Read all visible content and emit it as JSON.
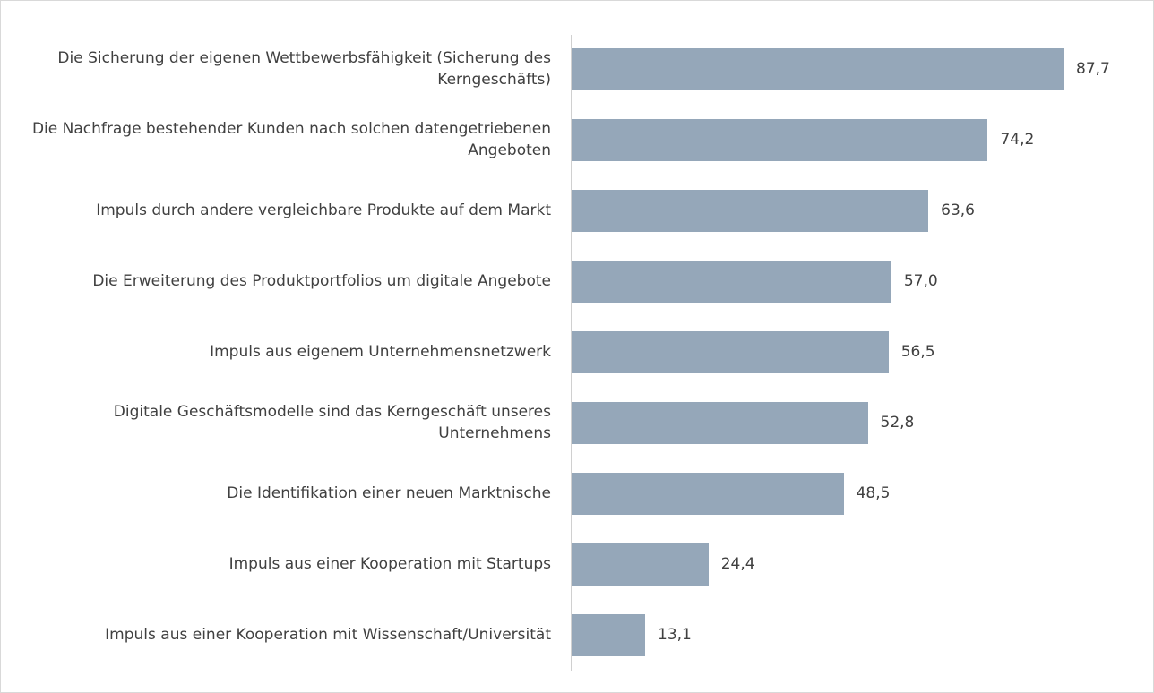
{
  "chart_data": {
    "type": "bar",
    "orientation": "horizontal",
    "categories": [
      "Die Sicherung der eigenen Wettbewerbsfähigkeit (Sicherung des Kerngeschäfts)",
      "Die Nachfrage bestehender Kunden nach solchen datengetriebenen Angeboten",
      "Impuls durch andere vergleichbare Produkte auf dem Markt",
      "Die Erweiterung des Produktportfolios um digitale Angebote",
      "Impuls aus eigenem Unternehmensnetzwerk",
      "Digitale Geschäftsmodelle sind das Kerngeschäft unseres Unternehmens",
      "Die Identifikation einer neuen Marktnische",
      "Impuls aus einer Kooperation mit Startups",
      "Impuls aus einer Kooperation mit Wissenschaft/Universität"
    ],
    "values": [
      87.7,
      74.2,
      63.6,
      57.0,
      56.5,
      52.8,
      48.5,
      24.4,
      13.1
    ],
    "value_labels": [
      "87,7",
      "74,2",
      "63,6",
      "57,0",
      "56,5",
      "52,8",
      "48,5",
      "24,4",
      "13,1"
    ],
    "color": "#95a7b9"
  }
}
